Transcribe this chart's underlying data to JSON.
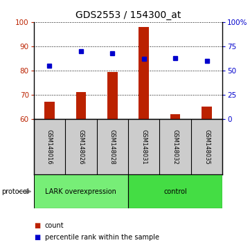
{
  "title": "GDS2553 / 154300_at",
  "samples": [
    "GSM148016",
    "GSM148026",
    "GSM148028",
    "GSM148031",
    "GSM148032",
    "GSM148035"
  ],
  "bar_values": [
    67.2,
    71.2,
    79.5,
    98.0,
    62.0,
    65.0
  ],
  "percentile_values": [
    55,
    70,
    68,
    62,
    63,
    60
  ],
  "bar_color": "#bb2200",
  "dot_color": "#0000cc",
  "ylim_left": [
    60,
    100
  ],
  "yticks_left": [
    60,
    70,
    80,
    90,
    100
  ],
  "ylim_right": [
    0,
    100
  ],
  "yticks_right": [
    0,
    25,
    50,
    75,
    100
  ],
  "ytick_labels_right": [
    "0",
    "25",
    "50",
    "75",
    "100%"
  ],
  "groups": [
    {
      "label": "LARK overexpression",
      "indices": [
        0,
        1,
        2
      ],
      "color": "#77ee77"
    },
    {
      "label": "control",
      "indices": [
        3,
        4,
        5
      ],
      "color": "#44dd44"
    }
  ],
  "protocol_label": "protocol",
  "legend_bar_label": "count",
  "legend_dot_label": "percentile rank within the sample",
  "title_fontsize": 10,
  "tick_fontsize": 7.5,
  "background_color": "#ffffff",
  "plot_area_bg": "#ffffff",
  "sample_box_color": "#cccccc",
  "bar_bottom": 60
}
